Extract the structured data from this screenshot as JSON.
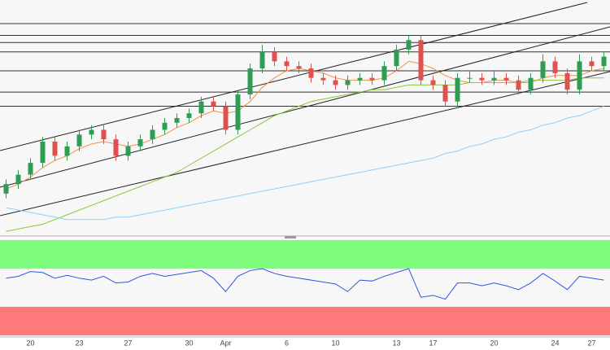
{
  "chart_data": [
    {
      "type": "candlestick",
      "open": [
        18,
        22,
        26,
        31,
        40,
        34,
        38,
        43,
        45,
        41,
        34,
        38,
        41,
        45,
        48,
        50,
        52,
        57,
        55,
        45,
        60,
        71,
        78,
        74,
        72,
        71,
        67,
        66,
        64,
        66,
        67,
        66,
        72,
        79,
        83,
        66,
        64,
        57,
        67,
        67,
        66,
        67,
        66,
        62,
        67,
        74,
        69,
        62,
        74,
        72
      ],
      "high": [
        24,
        28,
        33,
        42,
        42,
        40,
        45,
        47,
        47,
        43,
        40,
        43,
        47,
        50,
        52,
        54,
        59,
        59,
        57,
        62,
        73,
        81,
        80,
        76,
        74,
        73,
        69,
        68,
        68,
        69,
        69,
        74,
        81,
        85,
        85,
        68,
        66,
        69,
        70,
        69,
        70,
        69,
        68,
        69,
        77,
        76,
        71,
        77,
        76,
        78
      ],
      "low": [
        16,
        20,
        24,
        29,
        32,
        32,
        36,
        41,
        39,
        32,
        32,
        36,
        39,
        43,
        46,
        48,
        50,
        53,
        43,
        43,
        58,
        69,
        72,
        70,
        69,
        65,
        64,
        62,
        62,
        64,
        64,
        64,
        70,
        77,
        64,
        62,
        55,
        55,
        65,
        64,
        64,
        64,
        60,
        60,
        65,
        67,
        60,
        60,
        70,
        70
      ],
      "close": [
        22,
        26,
        31,
        40,
        34,
        38,
        43,
        45,
        41,
        34,
        38,
        41,
        45,
        48,
        50,
        52,
        57,
        55,
        45,
        60,
        71,
        78,
        74,
        72,
        71,
        67,
        66,
        64,
        66,
        67,
        66,
        72,
        79,
        83,
        66,
        64,
        57,
        67,
        67,
        66,
        67,
        66,
        62,
        67,
        74,
        69,
        62,
        74,
        72,
        76
      ],
      "up_color": "#2e9d53",
      "down_color": "#e0504f",
      "ylim": [
        0,
        100
      ],
      "hlines": [
        90,
        85,
        82,
        78,
        70,
        61,
        55
      ],
      "series": [
        {
          "color": "#f0924a",
          "values": [
            20,
            22,
            25,
            29,
            32,
            34,
            37,
            39,
            40,
            39,
            38,
            39,
            41,
            43,
            46,
            48,
            51,
            53,
            52,
            53,
            57,
            63,
            67,
            70,
            71,
            70,
            69,
            67,
            66,
            66,
            66,
            67,
            70,
            74,
            73,
            71,
            68,
            66,
            65,
            65,
            66,
            66,
            65,
            65,
            67,
            68,
            68,
            68,
            70,
            71
          ]
        },
        {
          "color": "#8cc63f",
          "values": [
            2,
            3,
            4,
            5,
            7,
            9,
            11,
            13,
            15,
            17,
            19,
            21,
            23,
            25,
            27,
            30,
            33,
            36,
            39,
            42,
            45,
            48,
            51,
            53,
            55,
            57,
            58,
            59,
            60,
            61,
            62,
            62,
            63,
            64,
            64,
            64,
            64,
            64,
            65,
            65,
            65,
            65,
            65,
            66,
            66,
            66,
            66,
            67,
            67,
            67
          ]
        },
        {
          "color": "#8fd0f5",
          "values": [
            12,
            11,
            10,
            9,
            8,
            7,
            7,
            7,
            7,
            8,
            8,
            9,
            10,
            11,
            12,
            13,
            14,
            15,
            16,
            17,
            18,
            19,
            20,
            21,
            22,
            23,
            24,
            25,
            26,
            27,
            28,
            29,
            30,
            31,
            32,
            33,
            35,
            36,
            38,
            39,
            41,
            42,
            44,
            45,
            47,
            48,
            50,
            51,
            53,
            55
          ]
        }
      ]
    },
    {
      "type": "line",
      "categories": [
        null,
        null,
        "20",
        null,
        null,
        null,
        "23",
        null,
        null,
        null,
        "27",
        null,
        null,
        null,
        null,
        "30",
        null,
        null,
        "Apr",
        null,
        null,
        null,
        null,
        "6",
        null,
        null,
        null,
        "10",
        null,
        null,
        null,
        null,
        "13",
        null,
        null,
        "17",
        null,
        null,
        null,
        null,
        "20",
        null,
        null,
        null,
        null,
        "24",
        null,
        null,
        "27",
        null
      ],
      "ylim": [
        0,
        100
      ],
      "bands": [
        {
          "from": 70,
          "to": 100,
          "color": "#7dfc7d"
        },
        {
          "from": 0,
          "to": 30,
          "color": "#ff7b7b"
        }
      ],
      "series": [
        {
          "color": "#3355dd",
          "values": [
            60,
            62,
            67,
            66,
            60,
            63,
            60,
            58,
            62,
            55,
            56,
            62,
            65,
            62,
            64,
            66,
            68,
            60,
            46,
            62,
            68,
            70,
            65,
            62,
            60,
            58,
            56,
            54,
            46,
            58,
            57,
            62,
            66,
            70,
            40,
            42,
            38,
            55,
            55,
            52,
            55,
            52,
            48,
            55,
            65,
            57,
            48,
            62,
            60,
            58
          ]
        }
      ]
    }
  ]
}
